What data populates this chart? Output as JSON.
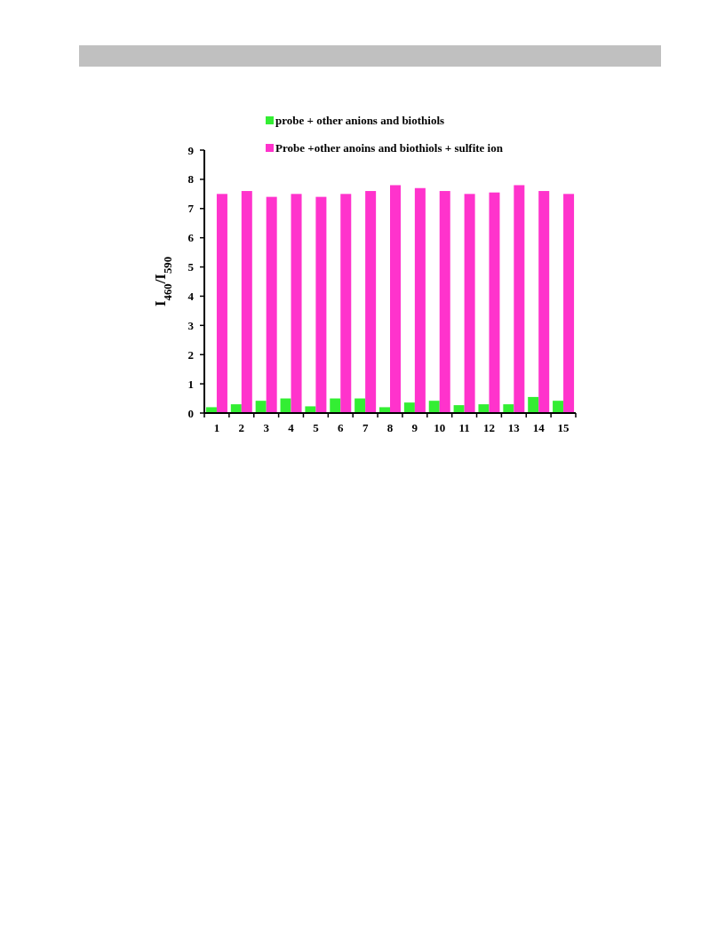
{
  "chart_data": {
    "type": "bar",
    "ylabel": "I$_{460}$/I$_{590}$",
    "categories": [
      "1",
      "2",
      "3",
      "4",
      "5",
      "6",
      "7",
      "8",
      "9",
      "10",
      "11",
      "12",
      "13",
      "14",
      "15"
    ],
    "series": [
      {
        "name": "probe + other  anions and biothiols",
        "color": "#33ee33",
        "values": [
          0.2,
          0.3,
          0.42,
          0.5,
          0.23,
          0.5,
          0.5,
          0.2,
          0.36,
          0.42,
          0.27,
          0.3,
          0.3,
          0.55,
          0.42
        ]
      },
      {
        "name": "Probe +other anoins and biothiols + sulfite ion",
        "color": "#ff33cc",
        "values": [
          7.5,
          7.6,
          7.4,
          7.5,
          7.4,
          7.5,
          7.6,
          7.8,
          7.7,
          7.6,
          7.5,
          7.55,
          7.8,
          7.6,
          7.5
        ]
      }
    ],
    "ylim": [
      0,
      9
    ],
    "yticks": [
      0,
      1,
      2,
      3,
      4,
      5,
      6,
      7,
      8,
      9
    ],
    "legend": "top",
    "grid": false
  }
}
